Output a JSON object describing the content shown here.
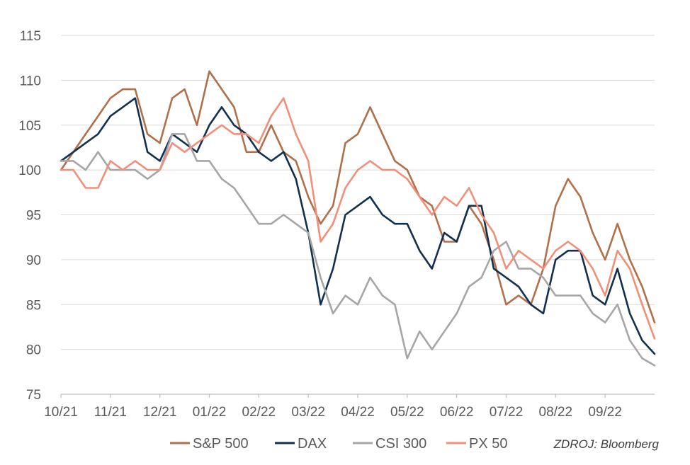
{
  "chart_data": {
    "type": "line",
    "title": "",
    "xlabel": "",
    "ylabel": "",
    "ylim": [
      75,
      115
    ],
    "y_ticks": [
      75,
      80,
      85,
      90,
      95,
      100,
      105,
      110,
      115
    ],
    "x_tick_labels": [
      "10/21",
      "11/21",
      "12/21",
      "01/22",
      "02/22",
      "03/22",
      "04/22",
      "05/22",
      "06/22",
      "07/22",
      "08/22",
      "09/22"
    ],
    "x_unit": "month index from 10/21",
    "grid": "horizontal",
    "legend_position": "bottom",
    "source": "ZDROJ: Bloomberg",
    "series": [
      {
        "name": "S&P 500",
        "color": "#b0704a",
        "x": [
          0,
          0.25,
          0.5,
          0.75,
          1.0,
          1.25,
          1.5,
          1.75,
          2.0,
          2.25,
          2.5,
          2.75,
          3.0,
          3.25,
          3.5,
          3.75,
          4.0,
          4.25,
          4.5,
          4.75,
          5.0,
          5.25,
          5.5,
          5.75,
          6.0,
          6.25,
          6.5,
          6.75,
          7.0,
          7.25,
          7.5,
          7.75,
          8.0,
          8.25,
          8.5,
          8.75,
          9.0,
          9.25,
          9.5,
          9.75,
          10.0,
          10.25,
          10.5,
          10.75,
          11.0,
          11.25,
          11.5,
          11.75,
          12.0
        ],
        "values": [
          100,
          102,
          104,
          106,
          108,
          109,
          109,
          104,
          103,
          108,
          109,
          105,
          111,
          109,
          107,
          102,
          102,
          105,
          102,
          101,
          97,
          94,
          96,
          103,
          104,
          107,
          104,
          101,
          100,
          97,
          96,
          92,
          92,
          96,
          94,
          90,
          85,
          86,
          85,
          89,
          96,
          99,
          97,
          93,
          90,
          94,
          90,
          87,
          83
        ]
      },
      {
        "name": "DAX",
        "color": "#12304f",
        "x": [
          0,
          0.25,
          0.5,
          0.75,
          1.0,
          1.25,
          1.5,
          1.75,
          2.0,
          2.25,
          2.5,
          2.75,
          3.0,
          3.25,
          3.5,
          3.75,
          4.0,
          4.25,
          4.5,
          4.75,
          5.0,
          5.25,
          5.5,
          5.75,
          6.0,
          6.25,
          6.5,
          6.75,
          7.0,
          7.25,
          7.5,
          7.75,
          8.0,
          8.25,
          8.5,
          8.75,
          9.0,
          9.25,
          9.5,
          9.75,
          10.0,
          10.25,
          10.5,
          10.75,
          11.0,
          11.25,
          11.5,
          11.75,
          12.0
        ],
        "values": [
          101,
          102,
          103,
          104,
          106,
          107,
          108,
          102,
          101,
          104,
          103,
          102,
          105,
          107,
          105,
          104,
          102,
          101,
          102,
          99,
          93,
          85,
          89,
          95,
          96,
          97,
          95,
          94,
          94,
          91,
          89,
          93,
          92,
          96,
          96,
          89,
          88,
          87,
          85,
          84,
          90,
          91,
          91,
          86,
          85,
          89,
          84,
          81,
          79.5
        ]
      },
      {
        "name": "CSI 300",
        "color": "#a6a6a6",
        "x": [
          0,
          0.25,
          0.5,
          0.75,
          1.0,
          1.25,
          1.5,
          1.75,
          2.0,
          2.25,
          2.5,
          2.75,
          3.0,
          3.25,
          3.5,
          3.75,
          4.0,
          4.25,
          4.5,
          4.75,
          5.0,
          5.25,
          5.5,
          5.75,
          6.0,
          6.25,
          6.5,
          6.75,
          7.0,
          7.25,
          7.5,
          7.75,
          8.0,
          8.25,
          8.5,
          8.75,
          9.0,
          9.25,
          9.5,
          9.75,
          10.0,
          10.25,
          10.5,
          10.75,
          11.0,
          11.25,
          11.5,
          11.75,
          12.0
        ],
        "values": [
          101,
          101,
          100,
          102,
          100,
          100,
          100,
          99,
          100,
          104,
          104,
          101,
          101,
          99,
          98,
          96,
          94,
          94,
          95,
          94,
          93,
          88,
          84,
          86,
          85,
          88,
          86,
          85,
          79,
          82,
          80,
          82,
          84,
          87,
          88,
          91,
          92,
          89,
          89,
          88,
          86,
          86,
          86,
          84,
          83,
          85,
          81,
          79,
          78.2
        ]
      },
      {
        "name": "PX 50",
        "color": "#f0907a",
        "x": [
          0,
          0.25,
          0.5,
          0.75,
          1.0,
          1.25,
          1.5,
          1.75,
          2.0,
          2.25,
          2.5,
          2.75,
          3.0,
          3.25,
          3.5,
          3.75,
          4.0,
          4.25,
          4.5,
          4.75,
          5.0,
          5.25,
          5.5,
          5.75,
          6.0,
          6.25,
          6.5,
          6.75,
          7.0,
          7.25,
          7.5,
          7.75,
          8.0,
          8.25,
          8.5,
          8.75,
          9.0,
          9.25,
          9.5,
          9.75,
          10.0,
          10.25,
          10.5,
          10.75,
          11.0,
          11.25,
          11.5,
          11.75,
          12.0
        ],
        "values": [
          100,
          100,
          98,
          98,
          101,
          100,
          101,
          100,
          100,
          103,
          102,
          103,
          104,
          105,
          104,
          104,
          103,
          106,
          108,
          104,
          101,
          92,
          94,
          98,
          100,
          101,
          100,
          100,
          99,
          97,
          95,
          97,
          96,
          98,
          95,
          93,
          89,
          91,
          90,
          89,
          91,
          92,
          91,
          89,
          86,
          91,
          89,
          85,
          81.2
        ]
      }
    ]
  }
}
